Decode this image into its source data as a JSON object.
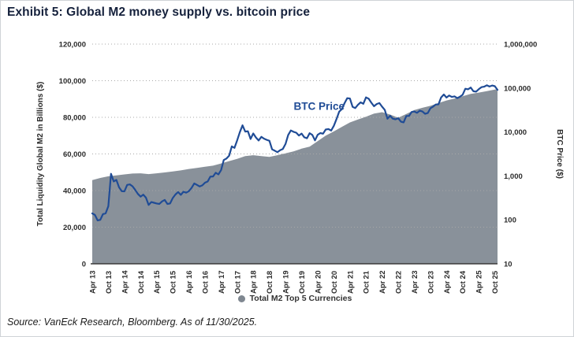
{
  "header": {
    "title": "Exhibit 5: Global M2 money supply vs. bitcoin price"
  },
  "legend": {
    "label": "Total M2 Top 5 Currencies"
  },
  "footer": {
    "source": "Source: VanEck Research, Bloomberg. As of 11/30/2025."
  },
  "colors": {
    "title": "#15213C",
    "axis_text": "#2B2B2B",
    "grid": "#A8A8A8",
    "axis_line": "#3A3A3A",
    "line": "#204C96",
    "area": "#89919A",
    "legend_dot": "#7F8790",
    "legend_text": "#333333",
    "source": "#1C1C1C",
    "border": "#CFD3D7"
  },
  "chart_data": {
    "type": "area",
    "subtype": "combo-area-line-dual-axis",
    "title": "Exhibit 5: Global M2 money supply vs. bitcoin price",
    "grid": "dotted-horizontal",
    "legend_position": "bottom-center",
    "annotation": {
      "label": "BTC Price",
      "month": 94,
      "y_frac": 0.3
    },
    "x_axis": {
      "months_span": 151,
      "tick_step_months": 6,
      "tick_labels": [
        "Apr 13",
        "Oct 13",
        "Apr 14",
        "Oct 14",
        "Apr 15",
        "Oct 15",
        "Apr 16",
        "Oct 16",
        "Apr 17",
        "Oct 17",
        "Apr 18",
        "Oct 18",
        "Apr 19",
        "Oct 19",
        "Apr 20",
        "Oct 20",
        "Apr 21",
        "Oct 21",
        "Apr 22",
        "Oct 22",
        "Apr 23",
        "Oct 23",
        "Apr 24",
        "Oct 24",
        "Apr 25",
        "Oct 25"
      ]
    },
    "left_axis": {
      "label": "Total Liquidity Global M2 in Billions ($)",
      "scale": "linear",
      "range": [
        0,
        120000
      ],
      "tick_values": [
        0,
        20000,
        40000,
        60000,
        80000,
        100000,
        120000
      ],
      "ticks": [
        "0",
        "20,000",
        "40,000",
        "60,000",
        "80,000",
        "100,000",
        "120,000"
      ]
    },
    "right_axis": {
      "label": "BTC Price ($)",
      "scale": "log",
      "range": [
        10,
        1000000
      ],
      "tick_values": [
        10,
        100,
        1000,
        10000,
        100000,
        1000000
      ],
      "ticks": [
        "10",
        "100",
        "1,000",
        "10,000",
        "100,000",
        "1,000,000"
      ]
    },
    "series": [
      {
        "name": "Total M2 Top 5 Currencies",
        "type": "area",
        "axis": "left",
        "color": "#89919A",
        "x_months": [
          0,
          3,
          6,
          9,
          12,
          15,
          18,
          21,
          24,
          27,
          30,
          33,
          36,
          39,
          42,
          45,
          48,
          51,
          54,
          57,
          60,
          63,
          66,
          69,
          72,
          75,
          78,
          81,
          84,
          87,
          90,
          93,
          96,
          99,
          102,
          105,
          108,
          111,
          114,
          117,
          120,
          123,
          126,
          129,
          132,
          135,
          138,
          141,
          144,
          147,
          150,
          151
        ],
        "values": [
          45700,
          46900,
          47800,
          48300,
          48800,
          49300,
          49400,
          49000,
          49400,
          49900,
          50400,
          51000,
          51800,
          52400,
          53000,
          53600,
          54800,
          56100,
          57300,
          58800,
          59300,
          58800,
          58400,
          59300,
          60300,
          61400,
          62900,
          64000,
          67000,
          70000,
          72300,
          74800,
          77200,
          78800,
          80300,
          82000,
          82800,
          81500,
          79800,
          81800,
          84000,
          85200,
          86300,
          87800,
          89200,
          90300,
          91500,
          92800,
          93500,
          94300,
          95200,
          95500
        ]
      },
      {
        "name": "BTC Price",
        "type": "line",
        "axis": "right",
        "color": "#204C96",
        "start_month": 0,
        "step_months": 1,
        "values": [
          140,
          129,
          97,
          100,
          135,
          141,
          204,
          1120,
          750,
          810,
          550,
          450,
          445,
          625,
          640,
          580,
          480,
          388,
          338,
          375,
          320,
          218,
          254,
          245,
          236,
          230,
          263,
          284,
          230,
          236,
          314,
          378,
          430,
          370,
          437,
          416,
          449,
          531,
          673,
          625,
          575,
          610,
          700,
          745,
          963,
          970,
          1180,
          1080,
          1350,
          2300,
          2480,
          2875,
          4703,
          4338,
          6468,
          9916,
          14156,
          10221,
          10397,
          6938,
          9240,
          7494,
          6404,
          7735,
          7033,
          6626,
          6303,
          4017,
          3743,
          3457,
          3854,
          4105,
          5320,
          8560,
          10817,
          10085,
          9630,
          8293,
          9199,
          7569,
          7193,
          9350,
          8599,
          6438,
          8620,
          9454,
          9137,
          11351,
          11655,
          10776,
          13804,
          19714,
          28990,
          33114,
          45240,
          58800,
          57750,
          37332,
          35041,
          41553,
          47166,
          43791,
          61320,
          56987,
          46197,
          38483,
          43193,
          45539,
          37650,
          31793,
          19985,
          23303,
          20050,
          19432,
          20490,
          17163,
          16540,
          23130,
          23142,
          28478,
          29233,
          27216,
          30472,
          29230,
          25932,
          26968,
          34668,
          37718,
          42280,
          42580,
          61200,
          71333,
          60637,
          67530,
          62678,
          64620,
          58970,
          63330,
          70215,
          96400,
          93430,
          102400,
          84350,
          82550,
          94180,
          104600,
          107140,
          115760,
          108240,
          114060,
          110100,
          91000
        ]
      }
    ]
  }
}
